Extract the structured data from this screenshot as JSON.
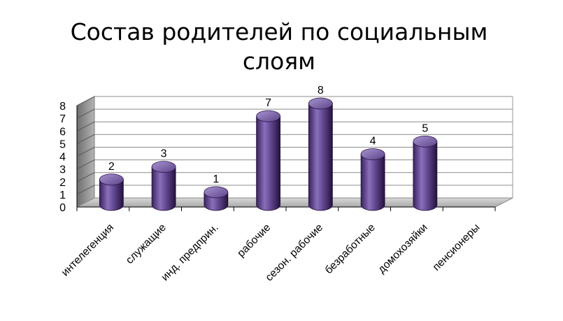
{
  "chart_data": {
    "type": "bar",
    "title": "Состав родителей по социальным слоям",
    "title_lines": [
      "Состав родителей по социальным",
      "слоям"
    ],
    "categories": [
      "интелегенция",
      "служащие",
      "инд. предприн.",
      "рабочие",
      "сезон. рабочие",
      "безработные",
      "домохозяйки",
      "пенсионеры"
    ],
    "values": [
      2,
      3,
      1,
      7,
      8,
      4,
      5,
      0
    ],
    "data_labels": [
      "2",
      "3",
      "1",
      "7",
      "8",
      "4",
      "5",
      ""
    ],
    "y_ticks": [
      "0",
      "1",
      "2",
      "3",
      "4",
      "5",
      "6",
      "7",
      "8"
    ],
    "ylim": [
      0,
      8
    ],
    "xlabel": "",
    "ylabel": "",
    "grid": true,
    "style": "3d-cylinder",
    "colors": {
      "bar_dark": "#2a1646",
      "bar_mid": "#6a4f9a",
      "bar_light": "#a08ccb",
      "wall_back": "#ffffff",
      "wall_side": "#8f8f8f",
      "floor": "#c9c9c9",
      "grid": "#8c8c8c"
    }
  }
}
